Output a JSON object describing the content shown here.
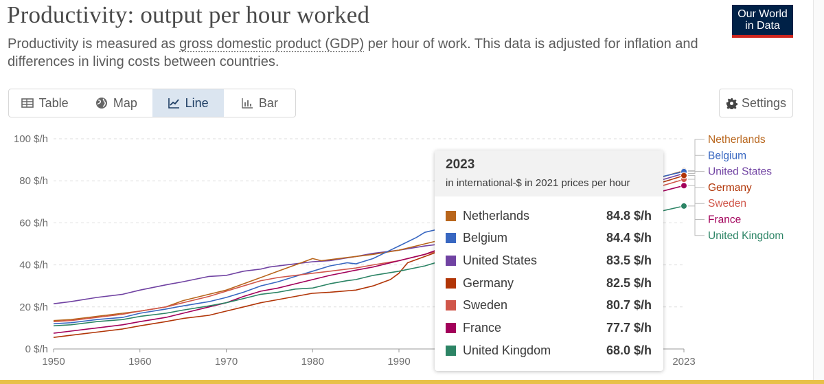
{
  "header": {
    "title": "Productivity: output per hour worked",
    "subtitle_pre": "Productivity is measured as ",
    "subtitle_term": "gross domestic product (GDP)",
    "subtitle_post": " per hour of work. This data is adjusted for inflation and differences in living costs between countries.",
    "logo_line1": "Our World",
    "logo_line2": "in Data"
  },
  "tabs": [
    {
      "label": "Table",
      "icon": "table-icon",
      "active": false
    },
    {
      "label": "Map",
      "icon": "globe-icon",
      "active": false
    },
    {
      "label": "Line",
      "icon": "line-chart-icon",
      "active": true
    },
    {
      "label": "Bar",
      "icon": "bar-chart-icon",
      "active": false
    }
  ],
  "settings": {
    "label": "Settings",
    "icon": "gear-icon"
  },
  "colors": {
    "Netherlands": "#b8651b",
    "Belgium": "#3867c1",
    "United States": "#7042a2",
    "Germany": "#b13507",
    "Sweden": "#d0564a",
    "France": "#a2005a",
    "United Kingdom": "#2c8465"
  },
  "tooltip": {
    "year": "2023",
    "unit": "in international-$ in 2021 prices per hour",
    "rows": [
      {
        "name": "Netherlands",
        "value": "84.8 $/h"
      },
      {
        "name": "Belgium",
        "value": "84.4 $/h"
      },
      {
        "name": "United States",
        "value": "83.5 $/h"
      },
      {
        "name": "Germany",
        "value": "82.5 $/h"
      },
      {
        "name": "Sweden",
        "value": "80.7 $/h"
      },
      {
        "name": "France",
        "value": "77.7 $/h"
      },
      {
        "name": "United Kingdom",
        "value": "68.0 $/h"
      }
    ]
  },
  "chart_data": {
    "type": "line",
    "ylim": [
      0,
      100
    ],
    "xlim": [
      1950,
      2023
    ],
    "y_ticks": [
      0,
      20,
      40,
      60,
      80,
      100
    ],
    "y_tick_labels": [
      "0 $/h",
      "20 $/h",
      "40 $/h",
      "60 $/h",
      "80 $/h",
      "100 $/h"
    ],
    "x_ticks": [
      1950,
      1960,
      1970,
      1980,
      1990,
      2023
    ],
    "x_tick_labels": [
      "1950",
      "1960",
      "1970",
      "1980",
      "1990",
      "2023"
    ],
    "grid": true,
    "legend_position": "right",
    "legend": [
      "Netherlands",
      "Belgium",
      "United States",
      "Germany",
      "Sweden",
      "France",
      "United Kingdom"
    ],
    "series": [
      {
        "name": "United States",
        "points": [
          [
            1950,
            21.5
          ],
          [
            1952,
            22.5
          ],
          [
            1955,
            24.5
          ],
          [
            1958,
            26
          ],
          [
            1960,
            28
          ],
          [
            1963,
            30.5
          ],
          [
            1965,
            32
          ],
          [
            1968,
            34.5
          ],
          [
            1970,
            35
          ],
          [
            1972,
            37
          ],
          [
            1974,
            38
          ],
          [
            1975,
            39
          ],
          [
            1977,
            40
          ],
          [
            1978,
            40.5
          ],
          [
            1980,
            41.5
          ],
          [
            1982,
            42
          ],
          [
            1985,
            44
          ],
          [
            1987,
            45.5
          ],
          [
            1990,
            47
          ],
          [
            1993,
            49
          ],
          [
            1995,
            50
          ],
          [
            2023,
            83.5
          ]
        ]
      },
      {
        "name": "Netherlands",
        "points": [
          [
            1950,
            13.5
          ],
          [
            1952,
            14
          ],
          [
            1955,
            15.5
          ],
          [
            1958,
            17
          ],
          [
            1960,
            18
          ],
          [
            1963,
            20
          ],
          [
            1965,
            23
          ],
          [
            1968,
            26
          ],
          [
            1970,
            28
          ],
          [
            1972,
            31
          ],
          [
            1974,
            34
          ],
          [
            1976,
            37
          ],
          [
            1978,
            40
          ],
          [
            1980,
            43
          ],
          [
            1981,
            42
          ],
          [
            1983,
            43
          ],
          [
            1985,
            44
          ],
          [
            1987,
            45
          ],
          [
            1990,
            47
          ],
          [
            1993,
            50
          ],
          [
            1995,
            52
          ],
          [
            2023,
            84.8
          ]
        ]
      },
      {
        "name": "Belgium",
        "points": [
          [
            1950,
            12
          ],
          [
            1952,
            12.5
          ],
          [
            1955,
            14
          ],
          [
            1958,
            15
          ],
          [
            1960,
            17
          ],
          [
            1963,
            19
          ],
          [
            1965,
            20.5
          ],
          [
            1968,
            22.5
          ],
          [
            1970,
            24.5
          ],
          [
            1972,
            27
          ],
          [
            1974,
            30
          ],
          [
            1976,
            32
          ],
          [
            1978,
            34.5
          ],
          [
            1980,
            37
          ],
          [
            1982,
            39.5
          ],
          [
            1984,
            41
          ],
          [
            1985,
            40.5
          ],
          [
            1987,
            43
          ],
          [
            1989,
            47
          ],
          [
            1990,
            49
          ],
          [
            1992,
            53
          ],
          [
            1993,
            55.5
          ],
          [
            2023,
            84.4
          ]
        ]
      },
      {
        "name": "Sweden",
        "points": [
          [
            1950,
            13
          ],
          [
            1952,
            13.5
          ],
          [
            1955,
            15
          ],
          [
            1958,
            16.5
          ],
          [
            1960,
            18
          ],
          [
            1963,
            20
          ],
          [
            1965,
            22
          ],
          [
            1968,
            25
          ],
          [
            1970,
            27.5
          ],
          [
            1972,
            30
          ],
          [
            1974,
            32.5
          ],
          [
            1976,
            34
          ],
          [
            1978,
            35
          ],
          [
            1980,
            36
          ],
          [
            1982,
            37
          ],
          [
            1984,
            38
          ],
          [
            1985,
            38.5
          ],
          [
            1987,
            40
          ],
          [
            1990,
            42
          ],
          [
            1993,
            45
          ],
          [
            1995,
            47
          ],
          [
            2023,
            80.7
          ]
        ]
      },
      {
        "name": "Germany",
        "points": [
          [
            1950,
            5.5
          ],
          [
            1952,
            6.5
          ],
          [
            1955,
            8
          ],
          [
            1958,
            9.5
          ],
          [
            1960,
            11
          ],
          [
            1963,
            13
          ],
          [
            1965,
            14.5
          ],
          [
            1968,
            16
          ],
          [
            1970,
            18
          ],
          [
            1972,
            20
          ],
          [
            1974,
            22
          ],
          [
            1976,
            23.5
          ],
          [
            1978,
            25
          ],
          [
            1980,
            26.5
          ],
          [
            1982,
            27
          ],
          [
            1985,
            28
          ],
          [
            1987,
            30
          ],
          [
            1989,
            33
          ],
          [
            1990,
            36
          ],
          [
            1991,
            41
          ],
          [
            1993,
            44
          ],
          [
            1995,
            47
          ],
          [
            2023,
            82.5
          ]
        ]
      },
      {
        "name": "France",
        "points": [
          [
            1950,
            7.5
          ],
          [
            1952,
            8.5
          ],
          [
            1955,
            10
          ],
          [
            1958,
            11.5
          ],
          [
            1960,
            13
          ],
          [
            1963,
            15
          ],
          [
            1965,
            17
          ],
          [
            1968,
            20
          ],
          [
            1970,
            22
          ],
          [
            1972,
            25
          ],
          [
            1974,
            27.5
          ],
          [
            1976,
            29
          ],
          [
            1978,
            31
          ],
          [
            1980,
            33
          ],
          [
            1982,
            35
          ],
          [
            1985,
            37.5
          ],
          [
            1987,
            39
          ],
          [
            1990,
            42
          ],
          [
            1993,
            45
          ],
          [
            1995,
            48
          ],
          [
            2023,
            77.7
          ]
        ]
      },
      {
        "name": "United Kingdom",
        "points": [
          [
            1950,
            11
          ],
          [
            1952,
            11.5
          ],
          [
            1955,
            13
          ],
          [
            1958,
            14
          ],
          [
            1960,
            15.5
          ],
          [
            1963,
            17
          ],
          [
            1965,
            18.5
          ],
          [
            1968,
            20.5
          ],
          [
            1970,
            22
          ],
          [
            1972,
            24
          ],
          [
            1974,
            26
          ],
          [
            1976,
            27
          ],
          [
            1978,
            28.5
          ],
          [
            1980,
            29
          ],
          [
            1982,
            31
          ],
          [
            1984,
            32.5
          ],
          [
            1985,
            33
          ],
          [
            1987,
            35
          ],
          [
            1990,
            37
          ],
          [
            1993,
            39.5
          ],
          [
            1995,
            42
          ],
          [
            2023,
            68.0
          ]
        ]
      }
    ]
  }
}
